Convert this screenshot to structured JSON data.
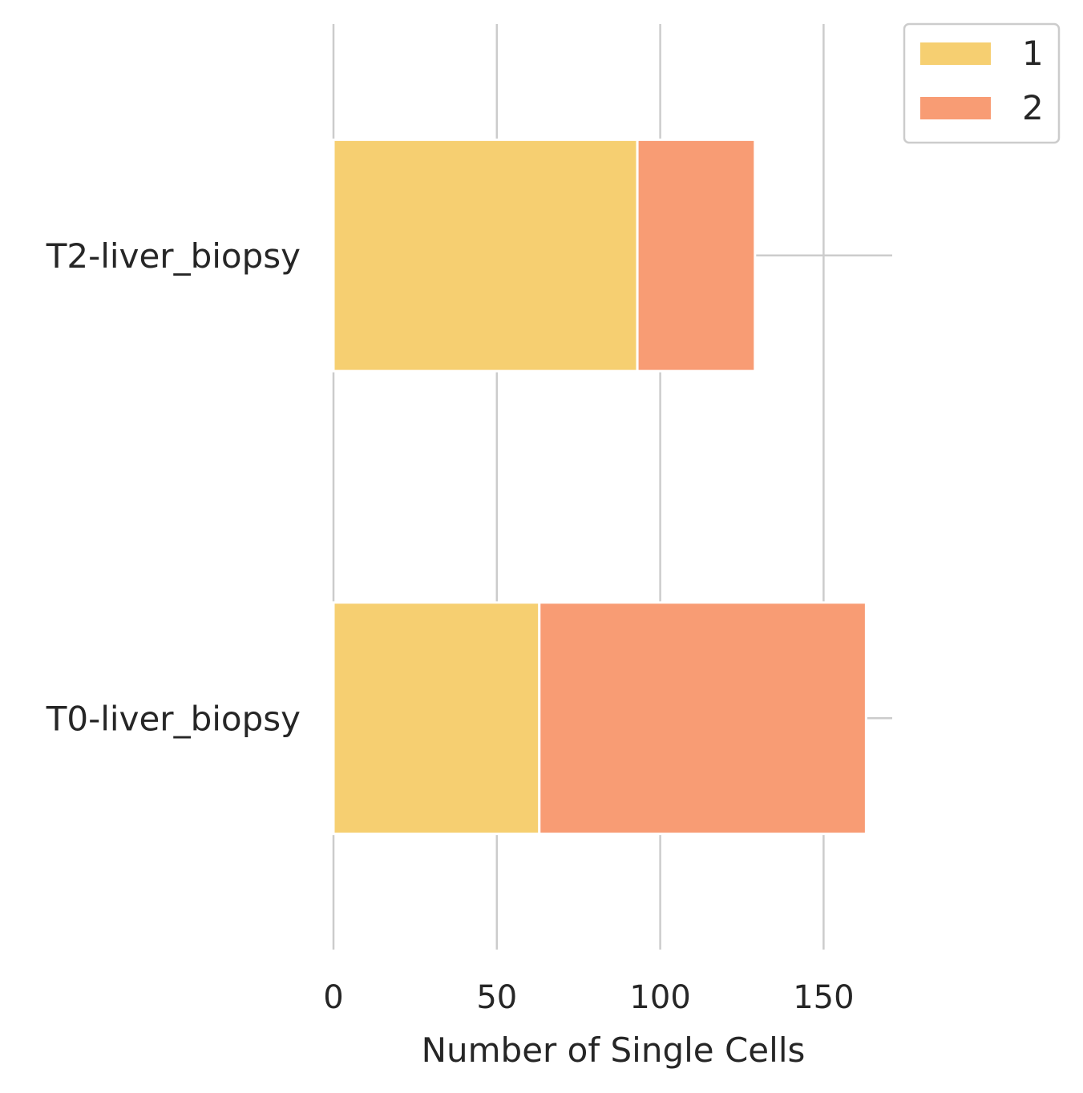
{
  "chart_data": {
    "type": "bar",
    "orientation": "horizontal",
    "stacked": true,
    "categories": [
      "T2-liver_biopsy",
      "T0-liver_biopsy"
    ],
    "series": [
      {
        "name": "1",
        "values": [
          93,
          63
        ],
        "color": "#f6cf71"
      },
      {
        "name": "2",
        "values": [
          36,
          100
        ],
        "color": "#f89c74"
      }
    ],
    "xlabel": "Number of Single Cells",
    "ylabel": "",
    "xlim": [
      0,
      171
    ],
    "xticks": [
      0,
      50,
      100,
      150
    ],
    "xtick_labels": [
      "0",
      "50",
      "100",
      "150"
    ],
    "grid": "x",
    "gridline_color": "#cccccc",
    "legend": "top-right"
  }
}
